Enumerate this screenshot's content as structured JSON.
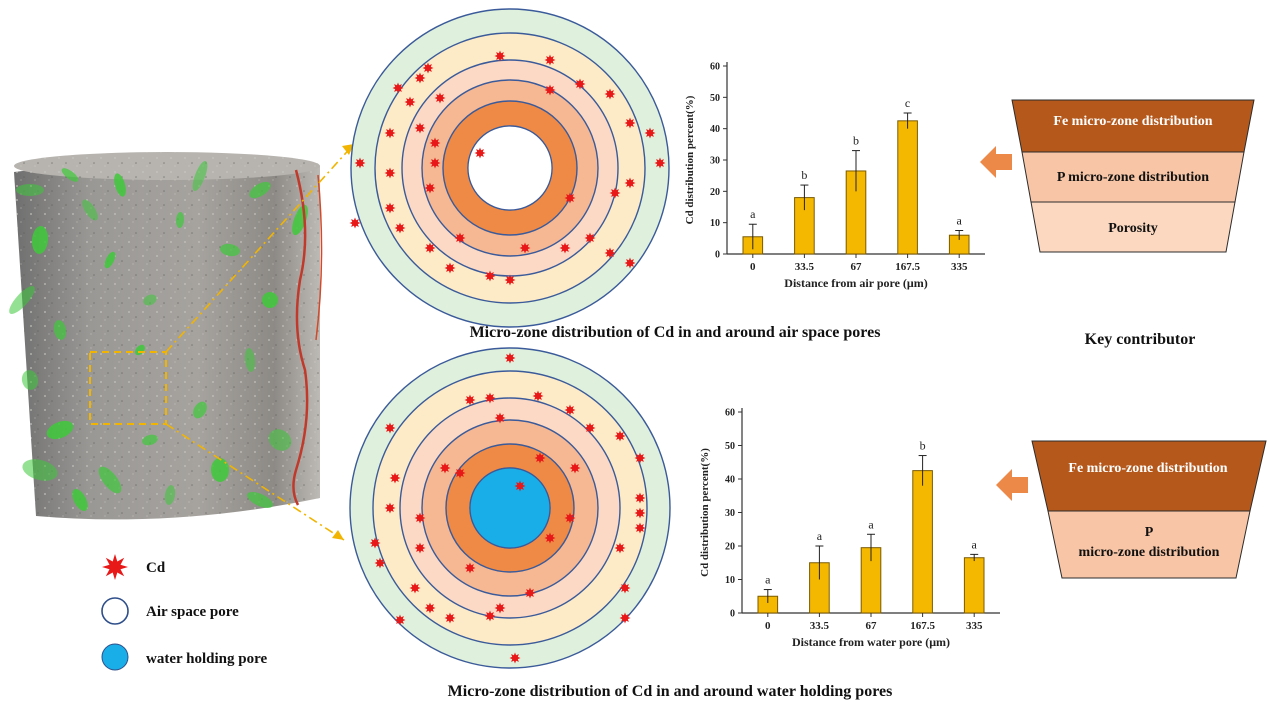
{
  "captions": {
    "air": "Micro-zone distribution of Cd in and around air space pores",
    "water": "Micro-zone distribution of Cd in and around water holding pores",
    "key": "Key contributor"
  },
  "legend": {
    "cd": "Cd",
    "air_pore": "Air space pore",
    "water_pore": "water holding pore"
  },
  "funnel_air": {
    "levels": [
      "Fe micro-zone distribution",
      "P micro-zone distribution",
      "Porosity"
    ]
  },
  "funnel_water": {
    "levels": [
      "Fe micro-zone distribution",
      "P micro-zone distribution"
    ]
  },
  "colors": {
    "bar": "#f5b800",
    "ring_outer": "#dff0dc",
    "ring_mid": "#fdebc8",
    "ring_light": "#fbd9c4",
    "ring_peach": "#f6b892",
    "ring_orange": "#ee8a45",
    "ring_line": "#3a5a9a",
    "cd": "#e81818",
    "water": "#19aee8",
    "funnel_dark": "#b5581c",
    "funnel_mid": "#f8c6a6",
    "funnel_light": "#fbd8bf",
    "arrow": "#ec8848",
    "green": "#3ec93a"
  },
  "chart_data": [
    {
      "type": "bar",
      "categories": [
        "0",
        "33.5",
        "67",
        "167.5",
        "335"
      ],
      "values": [
        5.5,
        18,
        26.5,
        42.5,
        6
      ],
      "errors": [
        4,
        4,
        6.5,
        2.5,
        1.5
      ],
      "significance": [
        "a",
        "b",
        "b",
        "c",
        "a"
      ],
      "ylabel": "Cd distribution percent(%)",
      "xlabel": "Distance from air pore (μm)",
      "ylim": [
        0,
        60
      ],
      "yticks": [
        0,
        10,
        20,
        30,
        40,
        50,
        60
      ]
    },
    {
      "type": "bar",
      "categories": [
        "0",
        "33.5",
        "67",
        "167.5",
        "335"
      ],
      "values": [
        5,
        15,
        19.5,
        42.5,
        16.5
      ],
      "errors": [
        2,
        5,
        4,
        4.5,
        1
      ],
      "significance": [
        "a",
        "a",
        "a",
        "b",
        "a"
      ],
      "ylabel": "Cd distribution percent(%)",
      "xlabel": "Distance from water pore (μm)",
      "ylim": [
        0,
        60
      ],
      "yticks": [
        0,
        10,
        20,
        30,
        40,
        50,
        60
      ]
    }
  ]
}
